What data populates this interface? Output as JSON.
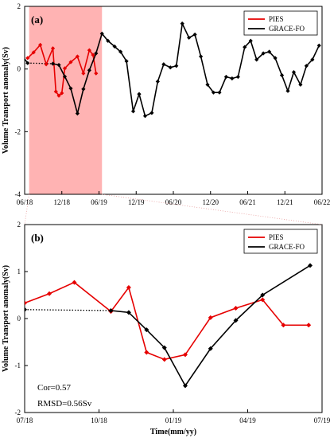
{
  "chart_data": [
    {
      "type": "line",
      "panel_label": "(a)",
      "ylabel": "Volume Transport anomaly(Sv)",
      "xlim": [
        2018.5,
        2022.5
      ],
      "ylim": [
        -4,
        2
      ],
      "yticks": [
        -4,
        -2,
        0,
        2
      ],
      "xticks": [
        {
          "v": 2018.5,
          "label": "06/18"
        },
        {
          "v": 2019.0,
          "label": "12/18"
        },
        {
          "v": 2019.5,
          "label": "06/19"
        },
        {
          "v": 2020.0,
          "label": "12/19"
        },
        {
          "v": 2020.5,
          "label": "06/20"
        },
        {
          "v": 2021.0,
          "label": "12/20"
        },
        {
          "v": 2021.5,
          "label": "06/21"
        },
        {
          "v": 2022.0,
          "label": "12/21"
        },
        {
          "v": 2022.5,
          "label": "06/22"
        }
      ],
      "shaded_span": [
        2018.56,
        2019.54
      ],
      "shaded_color": "#ffb3b3",
      "legend_position": "top-right",
      "series": [
        {
          "name": "PIES",
          "color": "#e60000",
          "x": [
            2018.54,
            2018.62,
            2018.71,
            2018.79,
            2018.88,
            2018.92,
            2018.96,
            2019.0,
            2019.04,
            2019.12,
            2019.21,
            2019.29,
            2019.37,
            2019.42,
            2019.46
          ],
          "y": [
            0.35,
            0.53,
            0.77,
            0.15,
            0.66,
            -0.72,
            -0.85,
            -0.77,
            0.02,
            0.22,
            0.4,
            -0.14,
            0.6,
            0.45,
            -0.14
          ]
        },
        {
          "name": "GRACE-FO",
          "color": "#000000",
          "x": [
            2018.46,
            2018.54,
            2018.88,
            2018.96,
            2019.04,
            2019.12,
            2019.21,
            2019.29,
            2019.37,
            2019.46,
            2019.54,
            2019.62,
            2019.71,
            2019.79,
            2019.87,
            2019.96,
            2020.04,
            2020.12,
            2020.21,
            2020.29,
            2020.37,
            2020.46,
            2020.54,
            2020.62,
            2020.71,
            2020.79,
            2020.87,
            2020.96,
            2021.04,
            2021.12,
            2021.21,
            2021.29,
            2021.37,
            2021.46,
            2021.54,
            2021.62,
            2021.71,
            2021.79,
            2021.87,
            2021.96,
            2022.04,
            2022.12,
            2022.21,
            2022.29,
            2022.37,
            2022.46
          ],
          "y": [
            0.45,
            0.19,
            0.17,
            0.13,
            -0.24,
            -0.62,
            -1.42,
            -0.64,
            -0.04,
            0.5,
            1.13,
            0.9,
            0.72,
            0.55,
            0.25,
            -1.35,
            -0.8,
            -1.5,
            -1.4,
            -0.4,
            0.15,
            0.05,
            0.1,
            1.45,
            1.0,
            1.1,
            0.4,
            -0.5,
            -0.75,
            -0.75,
            -0.25,
            -0.3,
            -0.25,
            0.7,
            0.9,
            0.3,
            0.5,
            0.55,
            0.35,
            -0.2,
            -0.7,
            -0.1,
            -0.5,
            0.1,
            0.3,
            0.75
          ]
        }
      ]
    },
    {
      "type": "line",
      "panel_label": "(b)",
      "ylabel": "Volume Transport anomaly(Sv)",
      "xlabel": "Time(mm/yy)",
      "xlim": [
        2018.5,
        2019.5
      ],
      "ylim": [
        -2,
        2
      ],
      "yticks": [
        -2,
        -1,
        0,
        1,
        2
      ],
      "xticks": [
        {
          "v": 2018.5,
          "label": "07/18"
        },
        {
          "v": 2018.75,
          "label": "10/18"
        },
        {
          "v": 2019.0,
          "label": "01/19"
        },
        {
          "v": 2019.25,
          "label": "04/19"
        },
        {
          "v": 2019.5,
          "label": "07/19"
        }
      ],
      "legend_position": "top-right",
      "annotations": [
        "Cor=0.57",
        "RMSD=0.56Sv"
      ],
      "series": [
        {
          "name": "PIES",
          "color": "#e60000",
          "x": [
            2018.5,
            2018.583,
            2018.667,
            2018.79,
            2018.85,
            2018.91,
            2018.97,
            2019.04,
            2019.125,
            2019.21,
            2019.3,
            2019.37,
            2019.455
          ],
          "y": [
            0.33,
            0.53,
            0.77,
            0.15,
            0.66,
            -0.72,
            -0.87,
            -0.77,
            0.02,
            0.22,
            0.4,
            -0.14,
            -0.14
          ]
        },
        {
          "name": "GRACE-FO",
          "color": "#000000",
          "x": [
            2018.5,
            2018.79,
            2018.85,
            2018.91,
            2018.97,
            2019.04,
            2019.125,
            2019.21,
            2019.3,
            2019.46
          ],
          "y": [
            0.19,
            0.17,
            0.13,
            -0.24,
            -0.62,
            -1.43,
            -0.64,
            -0.04,
            0.5,
            1.13
          ]
        }
      ]
    }
  ]
}
